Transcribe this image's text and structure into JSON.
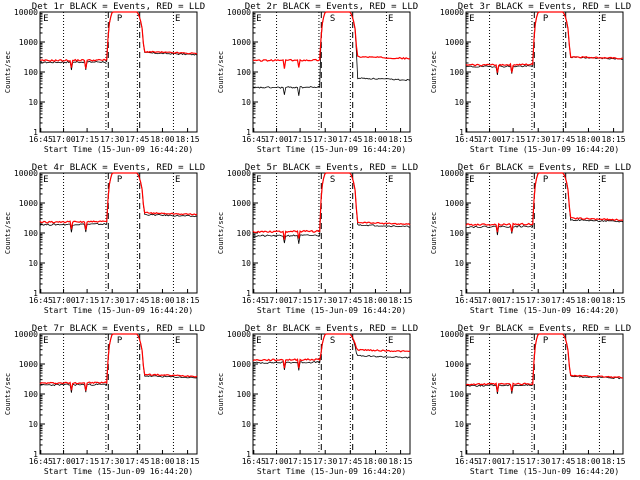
{
  "chart_data": [
    {
      "type": "line",
      "title": "Det 1r BLACK = Events, RED = LLD",
      "xlabel": "Start Time (15-Jun-09 16:44:20)",
      "ylabel": "Counts/sec",
      "flags": [
        "E",
        "P",
        "E"
      ],
      "ylim": [
        1,
        10000
      ],
      "yscale": "log",
      "xticks": [
        "16:45",
        "17:00",
        "17:15",
        "17:30",
        "17:45",
        "18:00",
        "18:15"
      ],
      "yticks": [
        "1",
        "10",
        "100",
        "1000",
        "10000"
      ],
      "black": {
        "base": 210,
        "peak": 10000,
        "after": 350
      },
      "red": {
        "base": 240,
        "peak": 10000,
        "after": 380
      }
    },
    {
      "type": "line",
      "title": "Det 2r BLACK = Events, RED = LLD",
      "xlabel": "Start Time (15-Jun-09 16:44:20)",
      "ylabel": "Counts/sec",
      "flags": [
        "E",
        "S",
        "E"
      ],
      "ylim": [
        1,
        10000
      ],
      "yscale": "log",
      "xticks": [
        "16:45",
        "17:00",
        "17:15",
        "17:30",
        "17:45",
        "18:00",
        "18:15"
      ],
      "yticks": [
        "1",
        "10",
        "100",
        "1000",
        "10000"
      ],
      "black": {
        "base": 30,
        "peak": 10000,
        "after": 50
      },
      "red": {
        "base": 240,
        "peak": 10000,
        "after": 260
      }
    },
    {
      "type": "line",
      "title": "Det 3r BLACK = Events, RED = LLD",
      "xlabel": "Start Time (15-Jun-09 16:44:20)",
      "ylabel": "Counts/sec",
      "flags": [
        "E",
        "P",
        "E"
      ],
      "ylim": [
        1,
        10000
      ],
      "yscale": "log",
      "xticks": [
        "16:45",
        "17:00",
        "17:15",
        "17:30",
        "17:45",
        "18:00",
        "18:15"
      ],
      "yticks": [
        "1",
        "10",
        "100",
        "1000",
        "10000"
      ],
      "black": {
        "base": 150,
        "peak": 10000,
        "after": 250
      },
      "red": {
        "base": 170,
        "peak": 10000,
        "after": 260
      }
    },
    {
      "type": "line",
      "title": "Det 4r BLACK = Events, RED = LLD",
      "xlabel": "Start Time (15-Jun-09 16:44:20)",
      "ylabel": "Counts/sec",
      "flags": [
        "E",
        "P",
        "E"
      ],
      "ylim": [
        1,
        10000
      ],
      "yscale": "log",
      "xticks": [
        "16:45",
        "17:00",
        "17:15",
        "17:30",
        "17:45",
        "18:00",
        "18:15"
      ],
      "yticks": [
        "1",
        "10",
        "100",
        "1000",
        "10000"
      ],
      "black": {
        "base": 190,
        "peak": 10000,
        "after": 330
      },
      "red": {
        "base": 230,
        "peak": 10000,
        "after": 380
      }
    },
    {
      "type": "line",
      "title": "Det 5r BLACK = Events, RED = LLD",
      "xlabel": "Start Time (15-Jun-09 16:44:20)",
      "ylabel": "Counts/sec",
      "flags": [
        "E",
        "S",
        "E"
      ],
      "ylim": [
        1,
        10000
      ],
      "yscale": "log",
      "xticks": [
        "16:45",
        "17:00",
        "17:15",
        "17:30",
        "17:45",
        "18:00",
        "18:15"
      ],
      "yticks": [
        "1",
        "10",
        "100",
        "1000",
        "10000"
      ],
      "black": {
        "base": 80,
        "peak": 10000,
        "after": 150
      },
      "red": {
        "base": 110,
        "peak": 10000,
        "after": 180
      }
    },
    {
      "type": "line",
      "title": "Det 6r BLACK = Events, RED = LLD",
      "xlabel": "Start Time (15-Jun-09 16:44:20)",
      "ylabel": "Counts/sec",
      "flags": [
        "E",
        "P",
        "E"
      ],
      "ylim": [
        1,
        10000
      ],
      "yscale": "log",
      "xticks": [
        "16:45",
        "17:00",
        "17:15",
        "17:30",
        "17:45",
        "18:00",
        "18:15"
      ],
      "yticks": [
        "1",
        "10",
        "100",
        "1000",
        "10000"
      ],
      "black": {
        "base": 160,
        "peak": 10000,
        "after": 220
      },
      "red": {
        "base": 190,
        "peak": 10000,
        "after": 250
      }
    },
    {
      "type": "line",
      "title": "Det 7r BLACK = Events, RED = LLD",
      "xlabel": "Start Time (15-Jun-09 16:44:20)",
      "ylabel": "Counts/sec",
      "flags": [
        "E",
        "P",
        "E"
      ],
      "ylim": [
        1,
        10000
      ],
      "yscale": "log",
      "xticks": [
        "16:45",
        "17:00",
        "17:15",
        "17:30",
        "17:45",
        "18:00",
        "18:15"
      ],
      "yticks": [
        "1",
        "10",
        "100",
        "1000",
        "10000"
      ],
      "black": {
        "base": 200,
        "peak": 10000,
        "after": 320
      },
      "red": {
        "base": 230,
        "peak": 10000,
        "after": 360
      }
    },
    {
      "type": "line",
      "title": "Det 8r BLACK = Events, RED = LLD",
      "xlabel": "Start Time (15-Jun-09 16:44:20)",
      "ylabel": "Counts/sec",
      "flags": [
        "E",
        "S",
        "E"
      ],
      "ylim": [
        1,
        10000
      ],
      "yscale": "log",
      "xticks": [
        "16:45",
        "17:00",
        "17:15",
        "17:30",
        "17:45",
        "18:00",
        "18:15"
      ],
      "yticks": [
        "1",
        "10",
        "100",
        "1000",
        "10000"
      ],
      "black": {
        "base": 1100,
        "peak": 10000,
        "after": 1500
      },
      "red": {
        "base": 1350,
        "peak": 10000,
        "after": 2400
      }
    },
    {
      "type": "line",
      "title": "Det 9r BLACK = Events, RED = LLD",
      "xlabel": "Start Time (15-Jun-09 16:44:20)",
      "ylabel": "Counts/sec",
      "flags": [
        "E",
        "P",
        "E"
      ],
      "ylim": [
        1,
        10000
      ],
      "yscale": "log",
      "xticks": [
        "16:45",
        "17:00",
        "17:15",
        "17:30",
        "17:45",
        "18:00",
        "18:15"
      ],
      "yticks": [
        "1",
        "10",
        "100",
        "1000",
        "10000"
      ],
      "black": {
        "base": 190,
        "peak": 10000,
        "after": 310
      },
      "red": {
        "base": 210,
        "peak": 10000,
        "after": 330
      }
    }
  ]
}
